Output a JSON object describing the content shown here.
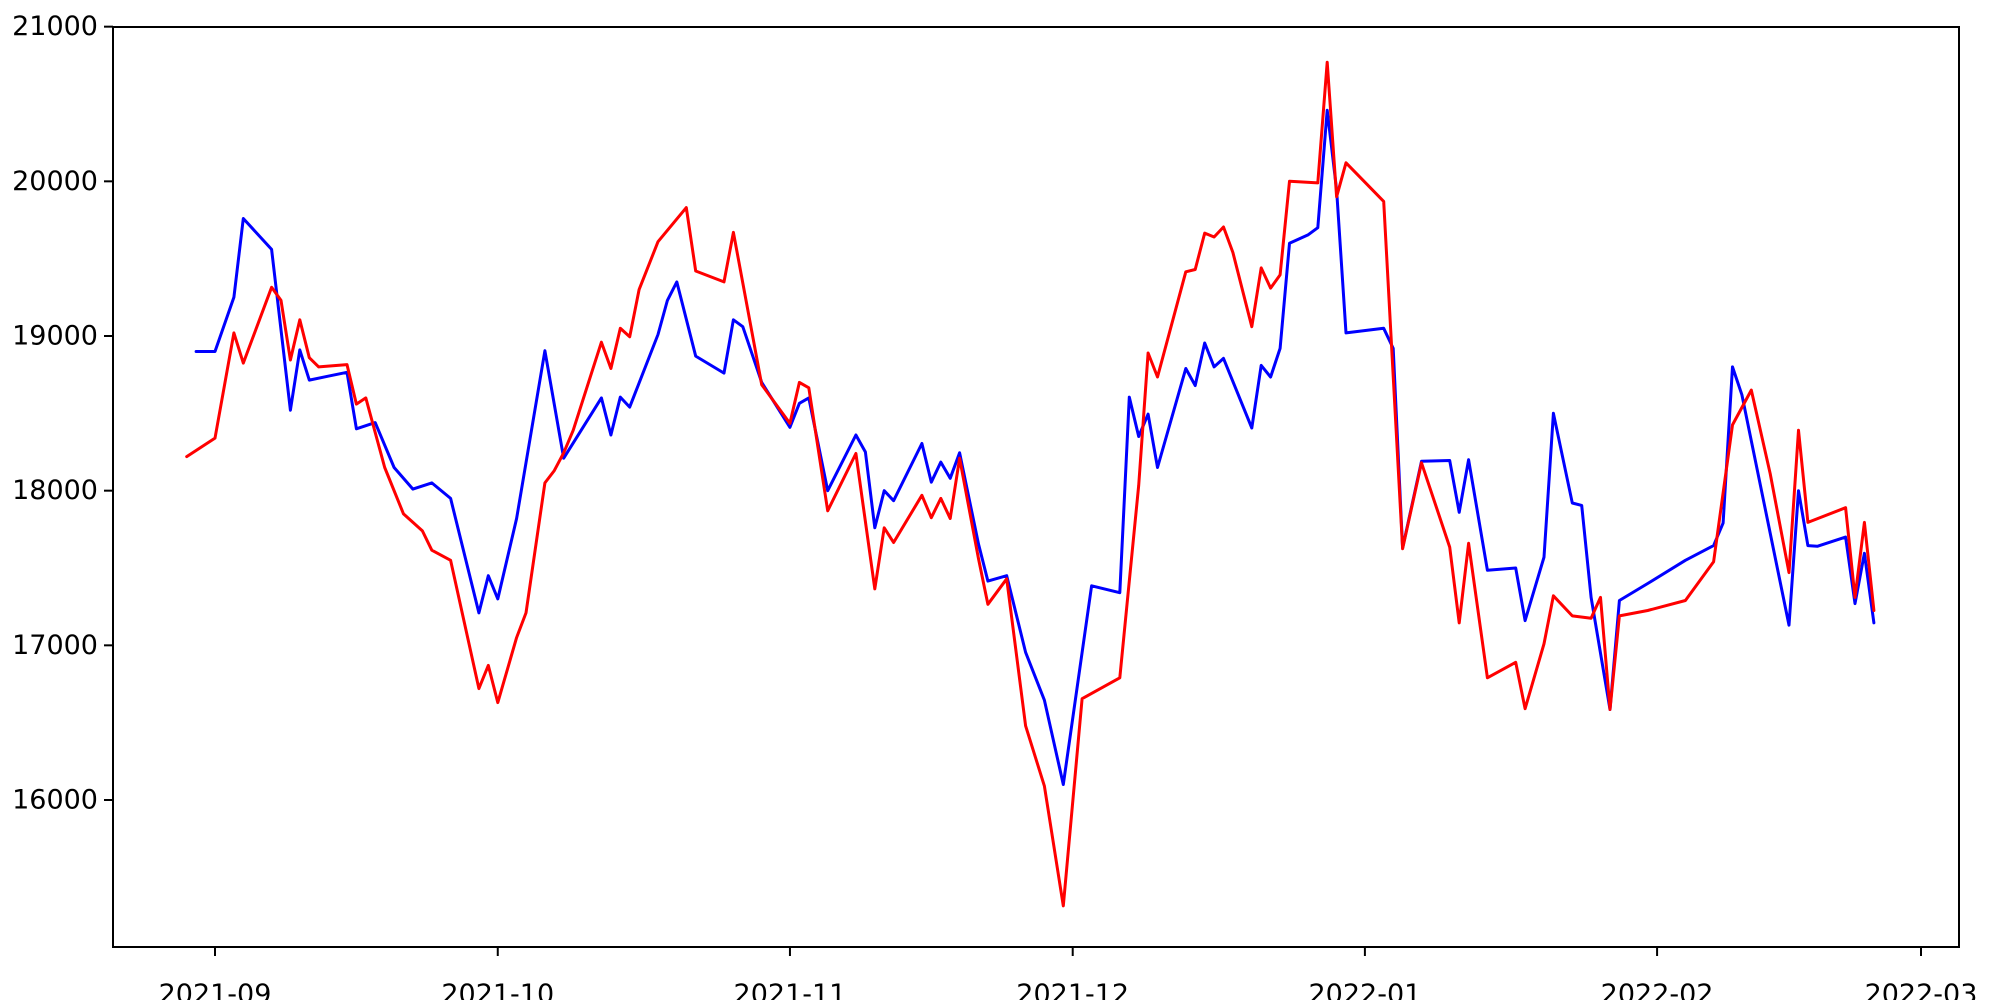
{
  "chart_data": {
    "type": "line",
    "title": "",
    "xlabel": "",
    "ylabel": "",
    "grid": false,
    "legend": "none",
    "background_color": "#ffffff",
    "axis_color": "#000000",
    "ylim": [
      15050,
      21000
    ],
    "xlim": [
      "2021-08-21",
      "2022-03-05"
    ],
    "x_tick_labels": [
      "2021-09",
      "2021-10",
      "2021-11",
      "2021-12",
      "2022-01",
      "2022-02",
      "2022-03"
    ],
    "x_tick_dates": [
      "2021-09-01",
      "2021-10-01",
      "2021-11-01",
      "2021-12-01",
      "2022-01-01",
      "2022-02-01",
      "2022-03-01"
    ],
    "y_tick_labels": [
      "16000",
      "17000",
      "18000",
      "19000",
      "20000",
      "21000"
    ],
    "y_tick_values": [
      16000,
      17000,
      18000,
      19000,
      20000,
      21000
    ],
    "series": [
      {
        "name": "blue-series",
        "color": "#0000ff",
        "points": [
          [
            "2021-08-30",
            18900
          ],
          [
            "2021-09-01",
            18900
          ],
          [
            "2021-09-03",
            19250
          ],
          [
            "2021-09-04",
            19760
          ],
          [
            "2021-09-07",
            19560
          ],
          [
            "2021-09-09",
            18520
          ],
          [
            "2021-09-10",
            18910
          ],
          [
            "2021-09-11",
            18715
          ],
          [
            "2021-09-13",
            18740
          ],
          [
            "2021-09-15",
            18765
          ],
          [
            "2021-09-16",
            18400
          ],
          [
            "2021-09-18",
            18440
          ],
          [
            "2021-09-20",
            18150
          ],
          [
            "2021-09-22",
            18010
          ],
          [
            "2021-09-24",
            18050
          ],
          [
            "2021-09-26",
            17950
          ],
          [
            "2021-09-29",
            17210
          ],
          [
            "2021-09-30",
            17450
          ],
          [
            "2021-10-01",
            17300
          ],
          [
            "2021-10-03",
            17820
          ],
          [
            "2021-10-06",
            18905
          ],
          [
            "2021-10-08",
            18210
          ],
          [
            "2021-10-12",
            18600
          ],
          [
            "2021-10-13",
            18360
          ],
          [
            "2021-10-14",
            18605
          ],
          [
            "2021-10-15",
            18540
          ],
          [
            "2021-10-18",
            19010
          ],
          [
            "2021-10-19",
            19230
          ],
          [
            "2021-10-20",
            19350
          ],
          [
            "2021-10-22",
            18870
          ],
          [
            "2021-10-25",
            18760
          ],
          [
            "2021-10-26",
            19105
          ],
          [
            "2021-10-27",
            19060
          ],
          [
            "2021-10-29",
            18700
          ],
          [
            "2021-11-01",
            18410
          ],
          [
            "2021-11-02",
            18565
          ],
          [
            "2021-11-03",
            18600
          ],
          [
            "2021-11-05",
            18000
          ],
          [
            "2021-11-08",
            18360
          ],
          [
            "2021-11-09",
            18250
          ],
          [
            "2021-11-10",
            17760
          ],
          [
            "2021-11-11",
            18000
          ],
          [
            "2021-11-12",
            17935
          ],
          [
            "2021-11-15",
            18305
          ],
          [
            "2021-11-16",
            18055
          ],
          [
            "2021-11-17",
            18185
          ],
          [
            "2021-11-18",
            18080
          ],
          [
            "2021-11-19",
            18245
          ],
          [
            "2021-11-21",
            17655
          ],
          [
            "2021-11-22",
            17415
          ],
          [
            "2021-11-24",
            17450
          ],
          [
            "2021-11-26",
            16955
          ],
          [
            "2021-11-28",
            16645
          ],
          [
            "2021-11-30",
            16100
          ],
          [
            "2021-12-03",
            17385
          ],
          [
            "2021-12-06",
            17340
          ],
          [
            "2021-12-07",
            18605
          ],
          [
            "2021-12-08",
            18350
          ],
          [
            "2021-12-09",
            18495
          ],
          [
            "2021-12-10",
            18150
          ],
          [
            "2021-12-13",
            18790
          ],
          [
            "2021-12-14",
            18680
          ],
          [
            "2021-12-15",
            18955
          ],
          [
            "2021-12-16",
            18800
          ],
          [
            "2021-12-17",
            18855
          ],
          [
            "2021-12-20",
            18405
          ],
          [
            "2021-12-21",
            18810
          ],
          [
            "2021-12-22",
            18735
          ],
          [
            "2021-12-23",
            18920
          ],
          [
            "2021-12-24",
            19600
          ],
          [
            "2021-12-26",
            19655
          ],
          [
            "2021-12-27",
            19700
          ],
          [
            "2021-12-28",
            20460
          ],
          [
            "2021-12-29",
            19945
          ],
          [
            "2021-12-30",
            19020
          ],
          [
            "2022-01-03",
            19050
          ],
          [
            "2022-01-04",
            18920
          ],
          [
            "2022-01-05",
            17630
          ],
          [
            "2022-01-07",
            18190
          ],
          [
            "2022-01-10",
            18195
          ],
          [
            "2022-01-11",
            17860
          ],
          [
            "2022-01-12",
            18200
          ],
          [
            "2022-01-14",
            17485
          ],
          [
            "2022-01-17",
            17500
          ],
          [
            "2022-01-18",
            17160
          ],
          [
            "2022-01-20",
            17570
          ],
          [
            "2022-01-21",
            18500
          ],
          [
            "2022-01-23",
            17920
          ],
          [
            "2022-01-24",
            17905
          ],
          [
            "2022-01-25",
            17310
          ],
          [
            "2022-01-27",
            16585
          ],
          [
            "2022-01-28",
            17290
          ],
          [
            "2022-01-31",
            17400
          ],
          [
            "2022-02-04",
            17550
          ],
          [
            "2022-02-07",
            17645
          ],
          [
            "2022-02-08",
            17790
          ],
          [
            "2022-02-09",
            18800
          ],
          [
            "2022-02-10",
            18620
          ],
          [
            "2022-02-13",
            17725
          ],
          [
            "2022-02-15",
            17130
          ],
          [
            "2022-02-16",
            18000
          ],
          [
            "2022-02-17",
            17645
          ],
          [
            "2022-02-18",
            17640
          ],
          [
            "2022-02-21",
            17700
          ],
          [
            "2022-02-22",
            17270
          ],
          [
            "2022-02-23",
            17595
          ],
          [
            "2022-02-24",
            17145
          ]
        ]
      },
      {
        "name": "red-series",
        "color": "#ff0000",
        "points": [
          [
            "2021-08-29",
            18220
          ],
          [
            "2021-09-01",
            18340
          ],
          [
            "2021-09-03",
            19020
          ],
          [
            "2021-09-04",
            18825
          ],
          [
            "2021-09-07",
            19315
          ],
          [
            "2021-09-08",
            19230
          ],
          [
            "2021-09-09",
            18845
          ],
          [
            "2021-09-10",
            19105
          ],
          [
            "2021-09-11",
            18860
          ],
          [
            "2021-09-12",
            18800
          ],
          [
            "2021-09-15",
            18815
          ],
          [
            "2021-09-16",
            18560
          ],
          [
            "2021-09-17",
            18600
          ],
          [
            "2021-09-19",
            18150
          ],
          [
            "2021-09-21",
            17850
          ],
          [
            "2021-09-23",
            17740
          ],
          [
            "2021-09-24",
            17615
          ],
          [
            "2021-09-26",
            17550
          ],
          [
            "2021-09-29",
            16720
          ],
          [
            "2021-09-30",
            16870
          ],
          [
            "2021-10-01",
            16630
          ],
          [
            "2021-10-03",
            17050
          ],
          [
            "2021-10-04",
            17210
          ],
          [
            "2021-10-06",
            18050
          ],
          [
            "2021-10-07",
            18130
          ],
          [
            "2021-10-08",
            18245
          ],
          [
            "2021-10-09",
            18390
          ],
          [
            "2021-10-12",
            18960
          ],
          [
            "2021-10-13",
            18790
          ],
          [
            "2021-10-14",
            19050
          ],
          [
            "2021-10-15",
            18995
          ],
          [
            "2021-10-16",
            19300
          ],
          [
            "2021-10-18",
            19610
          ],
          [
            "2021-10-21",
            19830
          ],
          [
            "2021-10-22",
            19420
          ],
          [
            "2021-10-25",
            19350
          ],
          [
            "2021-10-26",
            19670
          ],
          [
            "2021-10-29",
            18685
          ],
          [
            "2021-11-01",
            18435
          ],
          [
            "2021-11-02",
            18700
          ],
          [
            "2021-11-03",
            18665
          ],
          [
            "2021-11-05",
            17870
          ],
          [
            "2021-11-08",
            18240
          ],
          [
            "2021-11-10",
            17365
          ],
          [
            "2021-11-11",
            17760
          ],
          [
            "2021-11-12",
            17665
          ],
          [
            "2021-11-15",
            17970
          ],
          [
            "2021-11-16",
            17825
          ],
          [
            "2021-11-17",
            17950
          ],
          [
            "2021-11-18",
            17820
          ],
          [
            "2021-11-19",
            18210
          ],
          [
            "2021-11-21",
            17560
          ],
          [
            "2021-11-22",
            17265
          ],
          [
            "2021-11-24",
            17430
          ],
          [
            "2021-11-26",
            16480
          ],
          [
            "2021-11-28",
            16090
          ],
          [
            "2021-11-30",
            15315
          ],
          [
            "2021-12-02",
            16655
          ],
          [
            "2021-12-06",
            16790
          ],
          [
            "2021-12-08",
            18035
          ],
          [
            "2021-12-09",
            18890
          ],
          [
            "2021-12-10",
            18735
          ],
          [
            "2021-12-13",
            19415
          ],
          [
            "2021-12-14",
            19430
          ],
          [
            "2021-12-15",
            19665
          ],
          [
            "2021-12-16",
            19640
          ],
          [
            "2021-12-17",
            19705
          ],
          [
            "2021-12-18",
            19540
          ],
          [
            "2021-12-20",
            19060
          ],
          [
            "2021-12-21",
            19440
          ],
          [
            "2021-12-22",
            19310
          ],
          [
            "2021-12-23",
            19395
          ],
          [
            "2021-12-24",
            20000
          ],
          [
            "2021-12-27",
            19990
          ],
          [
            "2021-12-28",
            20770
          ],
          [
            "2021-12-29",
            19900
          ],
          [
            "2021-12-30",
            20120
          ],
          [
            "2022-01-03",
            19870
          ],
          [
            "2022-01-05",
            17625
          ],
          [
            "2022-01-07",
            18180
          ],
          [
            "2022-01-10",
            17635
          ],
          [
            "2022-01-11",
            17145
          ],
          [
            "2022-01-12",
            17660
          ],
          [
            "2022-01-14",
            16790
          ],
          [
            "2022-01-17",
            16890
          ],
          [
            "2022-01-18",
            16590
          ],
          [
            "2022-01-20",
            17010
          ],
          [
            "2022-01-21",
            17320
          ],
          [
            "2022-01-23",
            17190
          ],
          [
            "2022-01-25",
            17175
          ],
          [
            "2022-01-26",
            17310
          ],
          [
            "2022-01-27",
            16585
          ],
          [
            "2022-01-28",
            17190
          ],
          [
            "2022-01-31",
            17225
          ],
          [
            "2022-02-04",
            17290
          ],
          [
            "2022-02-07",
            17540
          ],
          [
            "2022-02-09",
            18425
          ],
          [
            "2022-02-11",
            18650
          ],
          [
            "2022-02-13",
            18110
          ],
          [
            "2022-02-15",
            17470
          ],
          [
            "2022-02-16",
            18390
          ],
          [
            "2022-02-17",
            17795
          ],
          [
            "2022-02-21",
            17890
          ],
          [
            "2022-02-22",
            17310
          ],
          [
            "2022-02-23",
            17795
          ],
          [
            "2022-02-24",
            17225
          ]
        ]
      }
    ]
  }
}
